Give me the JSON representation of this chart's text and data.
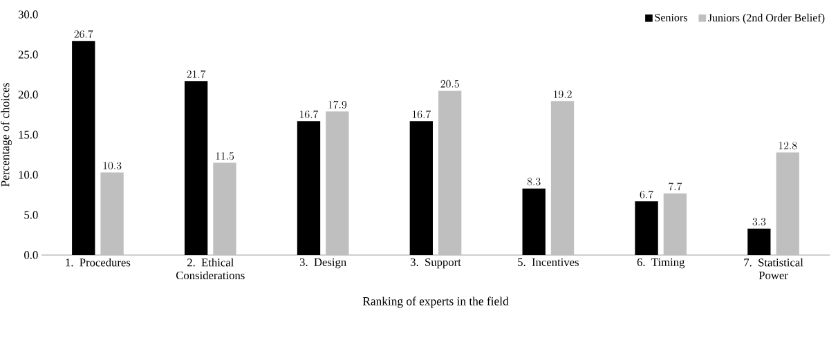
{
  "chart_data": {
    "type": "bar",
    "xlabel": "Ranking of experts in the field",
    "ylabel": "Percentage of choices",
    "categories": [
      "1. Procedures",
      "2. Ethical Considerations",
      "3. Design",
      "3. Support",
      "5. Incentives",
      "6. Timing",
      "7. Statistical Power"
    ],
    "series": [
      {
        "name": "Seniors",
        "color": "#000000",
        "values": [
          26.7,
          21.7,
          16.7,
          16.7,
          8.3,
          6.7,
          3.3
        ]
      },
      {
        "name": "Juniors (2nd Order Belief)",
        "color": "#bfbfbf",
        "values": [
          10.3,
          11.5,
          17.9,
          20.5,
          19.2,
          7.7,
          12.8
        ]
      }
    ],
    "ylim": [
      0,
      30
    ],
    "yticks": [
      {
        "value": 0,
        "label": "0.0"
      },
      {
        "value": 5,
        "label": "5.0"
      },
      {
        "value": 10,
        "label": "10.0"
      },
      {
        "value": 15,
        "label": "15.0"
      },
      {
        "value": 20,
        "label": "20.0"
      },
      {
        "value": 25,
        "label": "25.0"
      },
      {
        "value": 30,
        "label": "30.0"
      }
    ],
    "data_labels": true,
    "legend": "top right",
    "grid": false
  }
}
